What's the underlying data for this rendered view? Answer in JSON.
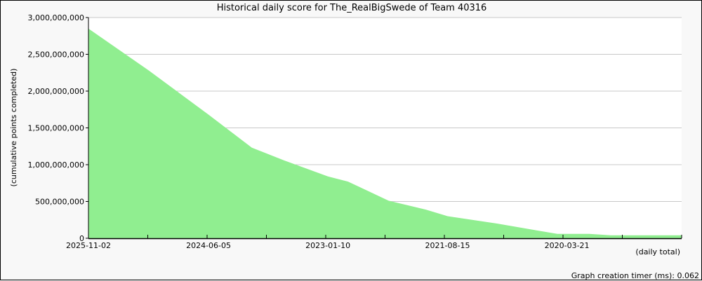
{
  "chart_data": {
    "type": "area",
    "title": "Historical daily score for The_RealBigSwede of Team 40316",
    "xlabel": "(daily total)",
    "ylabel": "(cumulative points completed)",
    "ylim": [
      0,
      3000000000
    ],
    "xlim": [
      "2025-11-02",
      "2018-11-15"
    ],
    "x_reversed": true,
    "grid": true,
    "color": "#90ee90",
    "y_ticks": [
      0,
      500000000,
      1000000000,
      1500000000,
      2000000000,
      2500000000,
      3000000000
    ],
    "y_tick_labels": [
      "0",
      "500,000,000",
      "1,000,000,000",
      "1,500,000,000",
      "2,000,000,000",
      "2,500,000,000",
      "3,000,000,000"
    ],
    "x_tick_labels": [
      "2025-11-02",
      "2024-06-05",
      "2023-01-10",
      "2021-08-15",
      "2020-03-21"
    ],
    "x_tick_dates": [
      "2025-11-02",
      "2024-06-05",
      "2023-01-10",
      "2021-08-15",
      "2020-03-21"
    ],
    "series": [
      {
        "x": [
          "2025-11-02",
          "2025-02-16",
          "2024-06-05",
          "2023-12-02",
          "2023-07-18",
          "2023-01-10",
          "2022-10-16",
          "2022-04-25",
          "2021-11-16",
          "2021-08-15",
          "2021-01-15",
          "2020-07-16",
          "2020-05-01",
          "2019-12-16",
          "2019-09-15",
          "2018-11-15"
        ],
        "y": [
          2850000000,
          2280000000,
          1680000000,
          1230000000,
          1060000000,
          840000000,
          770000000,
          510000000,
          390000000,
          300000000,
          200000000,
          100000000,
          60000000,
          60000000,
          40000000,
          40000000
        ]
      }
    ]
  },
  "footer": {
    "timer": "Graph creation timer (ms): 0.062"
  }
}
